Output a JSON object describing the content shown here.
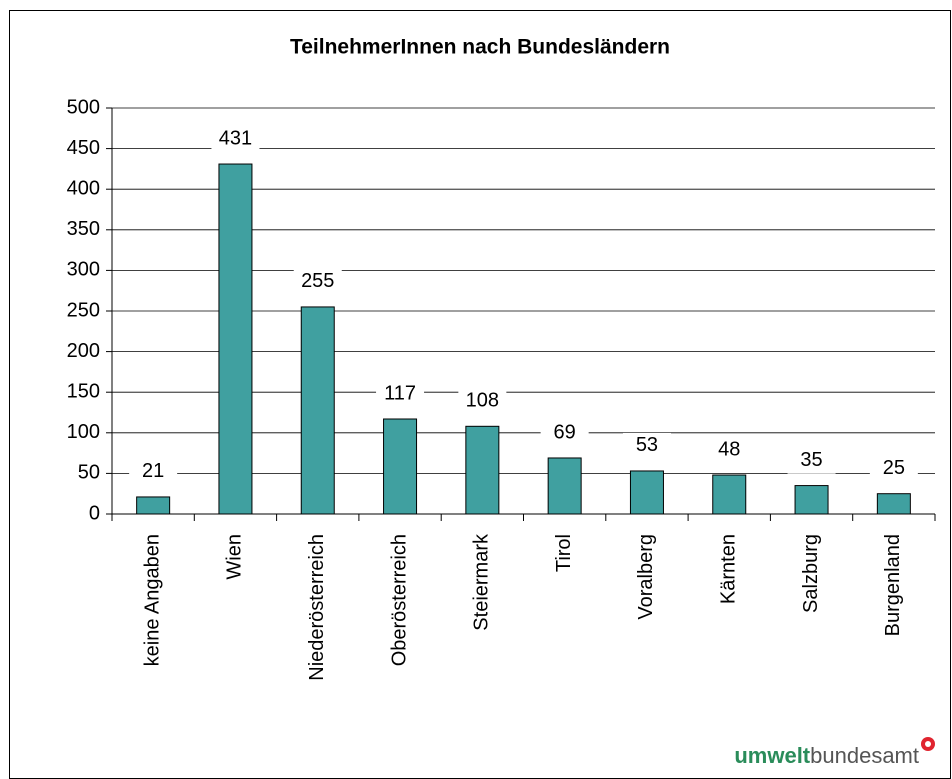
{
  "chart_data": {
    "type": "bar",
    "title": "TeilnehmerInnen nach Bundesländern",
    "categories": [
      "keine Angaben",
      "Wien",
      "Niederösterreich",
      "Oberösterreich",
      "Steiermark",
      "Tirol",
      "Voralberg",
      "Kärnten",
      "Salzburg",
      "Burgenland"
    ],
    "values": [
      21,
      431,
      255,
      117,
      108,
      69,
      53,
      48,
      35,
      25
    ],
    "color": "#40a0a0",
    "ylim": [
      0,
      500
    ],
    "yticks": [
      0,
      50,
      100,
      150,
      200,
      250,
      300,
      350,
      400,
      450,
      500
    ],
    "grid": true
  },
  "logo": {
    "bold": "umwelt",
    "rest": "bundesamt"
  }
}
